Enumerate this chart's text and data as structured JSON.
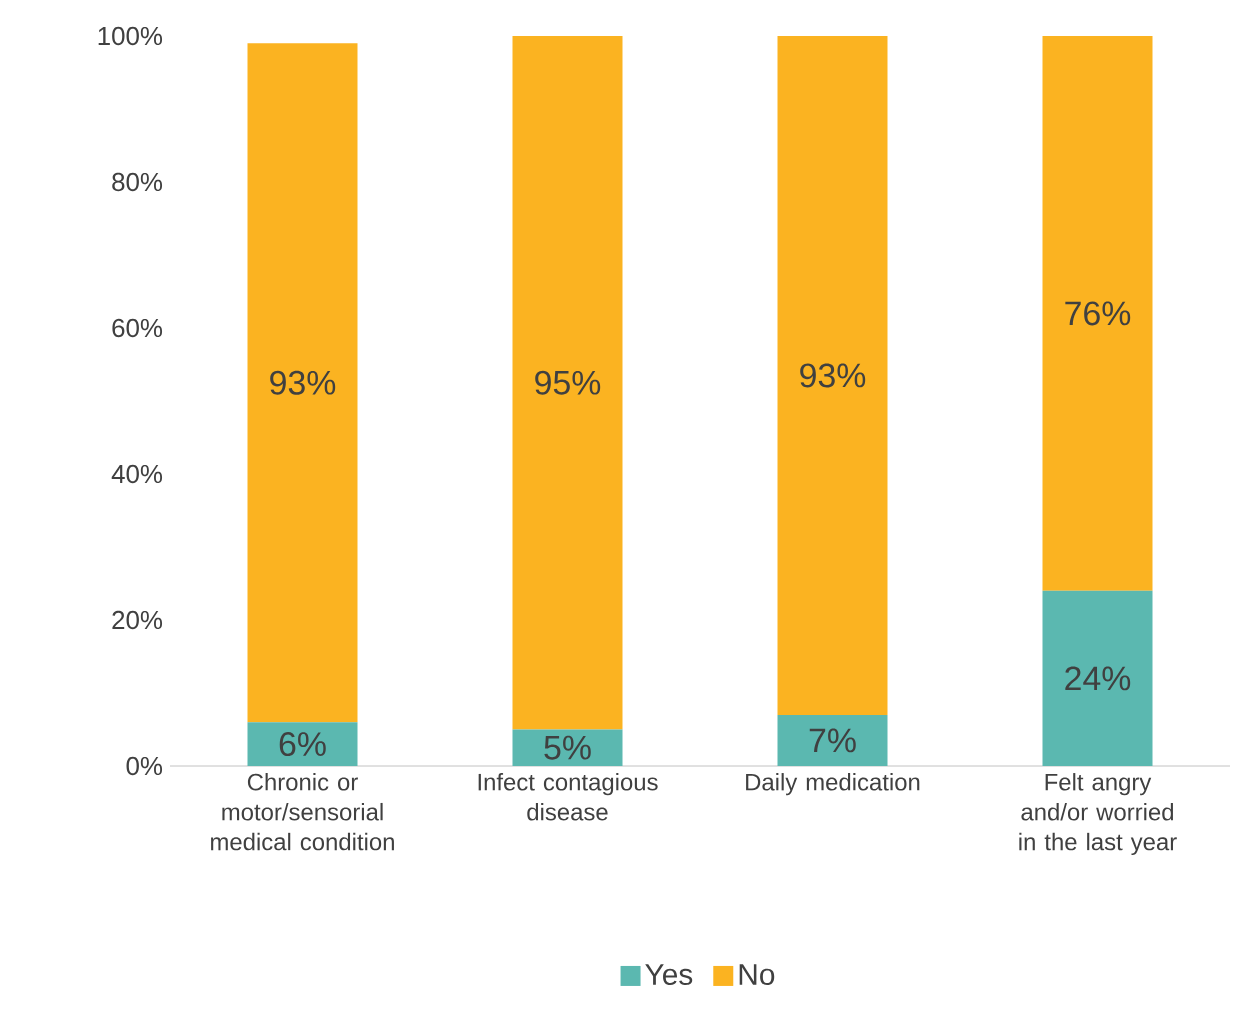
{
  "chart_data": {
    "type": "bar",
    "stacked": true,
    "categories": [
      "Chronic or motor/sensorial medical condition",
      "Infect contagious disease",
      "Daily medication",
      "Felt angry and/or worried in the last year"
    ],
    "series": [
      {
        "name": "Yes",
        "color": "#5bb8b0",
        "values": [
          6,
          5,
          7,
          24
        ],
        "value_labels": [
          "6%",
          "5%",
          "7%",
          "24%"
        ]
      },
      {
        "name": "No",
        "color": "#fbb321",
        "values": [
          93,
          95,
          93,
          76
        ],
        "value_labels": [
          "93%",
          "95%",
          "93%",
          "76%"
        ]
      }
    ],
    "ylim": [
      0,
      100
    ],
    "yticks": [
      {
        "value": 0,
        "label": "0%"
      },
      {
        "value": 20,
        "label": "20%"
      },
      {
        "value": 40,
        "label": "40%"
      },
      {
        "value": 60,
        "label": "60%"
      },
      {
        "value": 80,
        "label": "80%"
      },
      {
        "value": 100,
        "label": "100%"
      }
    ],
    "grid": false,
    "legend": "bottom"
  }
}
